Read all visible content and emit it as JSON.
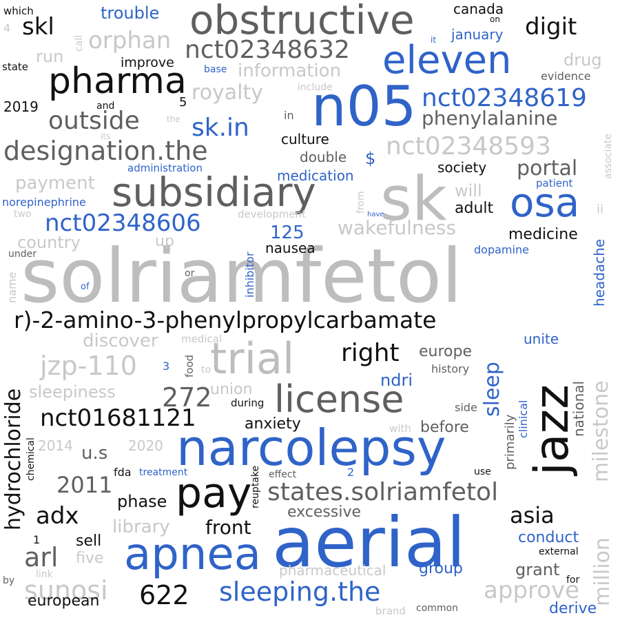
{
  "palette": {
    "black": "#111111",
    "dark_gray": "#5f5f5f",
    "gray": "#a6a6a6",
    "light_gray": "#c8c8c8",
    "blue": "#2f63c8"
  },
  "words": [
    {
      "text": "solriamfetol",
      "color": "#bdbdbd"
    },
    {
      "text": "sk",
      "color": "#bdbdbd"
    },
    {
      "text": "n05",
      "color": "#2f63c8"
    },
    {
      "text": "aerial",
      "color": "#2f63c8"
    },
    {
      "text": "narcolepsy",
      "color": "#2f63c8"
    },
    {
      "text": "obstructive",
      "color": "#5f5f5f"
    },
    {
      "text": "subsidiary",
      "color": "#5f5f5f"
    },
    {
      "text": "jazz",
      "color": "#111111"
    },
    {
      "text": "trial",
      "color": "#bdbdbd"
    },
    {
      "text": "license",
      "color": "#5f5f5f"
    },
    {
      "text": "apnea",
      "color": "#2f63c8"
    },
    {
      "text": "pay",
      "color": "#111111"
    },
    {
      "text": "eleven",
      "color": "#2f63c8"
    },
    {
      "text": "osa",
      "color": "#2f63c8"
    },
    {
      "text": "pharma",
      "color": "#111111"
    },
    {
      "text": "r)-2-amino-3-phenylpropylcarbamate",
      "color": "#111111"
    },
    {
      "text": "nct02348632",
      "color": "#5f5f5f"
    },
    {
      "text": "nct02348619",
      "color": "#2f63c8"
    },
    {
      "text": "nct02348593",
      "color": "#c8c8c8"
    },
    {
      "text": "nct02348606",
      "color": "#2f63c8"
    },
    {
      "text": "nct01681121",
      "color": "#111111"
    },
    {
      "text": "designation.the",
      "color": "#5f5f5f"
    },
    {
      "text": "states.solriamfetol",
      "color": "#5f5f5f"
    },
    {
      "text": "sleeping.the",
      "color": "#2f63c8"
    },
    {
      "text": "hydrochloride",
      "color": "#111111"
    },
    {
      "text": "orphan",
      "color": "#c8c8c8"
    },
    {
      "text": "outside",
      "color": "#5f5f5f"
    },
    {
      "text": "sk.in",
      "color": "#2f63c8"
    },
    {
      "text": "digit",
      "color": "#111111"
    },
    {
      "text": "skl",
      "color": "#111111"
    },
    {
      "text": "royalty",
      "color": "#c8c8c8"
    },
    {
      "text": "phenylalanine",
      "color": "#5f5f5f"
    },
    {
      "text": "portal",
      "color": "#5f5f5f"
    },
    {
      "text": "jzp-110",
      "color": "#c8c8c8"
    },
    {
      "text": "272",
      "color": "#5f5f5f"
    },
    {
      "text": "right",
      "color": "#111111"
    },
    {
      "text": "sleep",
      "color": "#2f63c8"
    },
    {
      "text": "milestone",
      "color": "#c8c8c8"
    },
    {
      "text": "million",
      "color": "#c8c8c8"
    },
    {
      "text": "adx",
      "color": "#111111"
    },
    {
      "text": "arl",
      "color": "#5f5f5f"
    },
    {
      "text": "sunosi",
      "color": "#c8c8c8"
    },
    {
      "text": "622",
      "color": "#111111"
    },
    {
      "text": "approve",
      "color": "#c8c8c8"
    },
    {
      "text": "asia",
      "color": "#111111"
    },
    {
      "text": "wakefulness",
      "color": "#c8c8c8"
    },
    {
      "text": "information",
      "color": "#c8c8c8"
    },
    {
      "text": "payment",
      "color": "#c8c8c8"
    },
    {
      "text": "country",
      "color": "#c8c8c8"
    },
    {
      "text": "discover",
      "color": "#c8c8c8"
    },
    {
      "text": "sleepiness",
      "color": "#c8c8c8"
    },
    {
      "text": "library",
      "color": "#c8c8c8"
    },
    {
      "text": "excessive",
      "color": "#5f5f5f"
    },
    {
      "text": "pharmaceutical",
      "color": "#c8c8c8"
    },
    {
      "text": "u.s",
      "color": "#5f5f5f"
    },
    {
      "text": "2011",
      "color": "#5f5f5f"
    },
    {
      "text": "front",
      "color": "#111111"
    },
    {
      "text": "phase",
      "color": "#111111"
    },
    {
      "text": "ndri",
      "color": "#2f63c8"
    },
    {
      "text": "anxiety",
      "color": "#111111"
    },
    {
      "text": "before",
      "color": "#5f5f5f"
    },
    {
      "text": "europe",
      "color": "#5f5f5f"
    },
    {
      "text": "unite",
      "color": "#2f63c8"
    },
    {
      "text": "conduct",
      "color": "#2f63c8"
    },
    {
      "text": "grant",
      "color": "#5f5f5f"
    },
    {
      "text": "group",
      "color": "#2f63c8"
    },
    {
      "text": "derive",
      "color": "#2f63c8"
    },
    {
      "text": "european",
      "color": "#111111"
    },
    {
      "text": "sell",
      "color": "#111111"
    },
    {
      "text": "five",
      "color": "#c8c8c8"
    },
    {
      "text": "medicine",
      "color": "#111111"
    },
    {
      "text": "adult",
      "color": "#111111"
    },
    {
      "text": "society",
      "color": "#111111"
    },
    {
      "text": "will",
      "color": "#c8c8c8"
    },
    {
      "text": "125",
      "color": "#2f63c8"
    },
    {
      "text": "nausea",
      "color": "#111111"
    },
    {
      "text": "drug",
      "color": "#c8c8c8"
    },
    {
      "text": "trouble",
      "color": "#2f63c8"
    },
    {
      "text": "january",
      "color": "#2f63c8"
    },
    {
      "text": "canada",
      "color": "#111111"
    },
    {
      "text": "evidence",
      "color": "#5f5f5f"
    },
    {
      "text": "culture",
      "color": "#111111"
    },
    {
      "text": "double",
      "color": "#5f5f5f"
    },
    {
      "text": "medication",
      "color": "#2f63c8"
    },
    {
      "text": "improve",
      "color": "#111111"
    },
    {
      "text": "run",
      "color": "#c8c8c8"
    },
    {
      "text": "2019",
      "color": "#111111"
    },
    {
      "text": "up",
      "color": "#c8c8c8"
    },
    {
      "text": "union",
      "color": "#c8c8c8"
    },
    {
      "text": "2014",
      "color": "#c8c8c8"
    },
    {
      "text": "2020",
      "color": "#c8c8c8"
    },
    {
      "text": "fda",
      "color": "#111111"
    },
    {
      "text": "treatment",
      "color": "#2f63c8"
    },
    {
      "text": "history",
      "color": "#5f5f5f"
    },
    {
      "text": "side",
      "color": "#5f5f5f"
    },
    {
      "text": "use",
      "color": "#111111"
    },
    {
      "text": "effect",
      "color": "#5f5f5f"
    },
    {
      "text": "dopamine",
      "color": "#2f63c8"
    },
    {
      "text": "patient",
      "color": "#2f63c8"
    },
    {
      "text": "development",
      "color": "#c8c8c8"
    },
    {
      "text": "norepinephrine",
      "color": "#2f63c8"
    },
    {
      "text": "administration",
      "color": "#2f63c8"
    },
    {
      "text": "which",
      "color": "#111111"
    },
    {
      "text": "state",
      "color": "#111111"
    },
    {
      "text": "and",
      "color": "#111111"
    },
    {
      "text": "the",
      "color": "#c8c8c8"
    },
    {
      "text": "its",
      "color": "#c8c8c8"
    },
    {
      "text": "in",
      "color": "#5f5f5f"
    },
    {
      "text": "include",
      "color": "#c8c8c8"
    },
    {
      "text": "base",
      "color": "#2f63c8"
    },
    {
      "text": "it",
      "color": "#2f63c8"
    },
    {
      "text": "on",
      "color": "#111111"
    },
    {
      "text": "two",
      "color": "#c8c8c8"
    },
    {
      "text": "under",
      "color": "#5f5f5f"
    },
    {
      "text": "or",
      "color": "#5f5f5f"
    },
    {
      "text": "of",
      "color": "#2f63c8"
    },
    {
      "text": "medical",
      "color": "#c8c8c8"
    },
    {
      "text": "during",
      "color": "#111111"
    },
    {
      "text": "with",
      "color": "#c8c8c8"
    },
    {
      "text": "food",
      "color": "#5f5f5f"
    },
    {
      "text": "to",
      "color": "#c8c8c8"
    },
    {
      "text": "3",
      "color": "#2f63c8"
    },
    {
      "text": "1",
      "color": "#111111"
    },
    {
      "text": "2",
      "color": "#2f63c8"
    },
    {
      "text": "4",
      "color": "#c8c8c8"
    },
    {
      "text": "5",
      "color": "#111111"
    },
    {
      "text": "$",
      "color": "#2f63c8"
    },
    {
      "text": "link",
      "color": "#c8c8c8"
    },
    {
      "text": "by",
      "color": "#5f5f5f"
    },
    {
      "text": "brand",
      "color": "#c8c8c8"
    },
    {
      "text": "common",
      "color": "#5f5f5f"
    },
    {
      "text": "for",
      "color": "#111111"
    },
    {
      "text": "external",
      "color": "#111111"
    },
    {
      "text": "call",
      "color": "#c8c8c8"
    },
    {
      "text": "associate",
      "color": "#c8c8c8"
    },
    {
      "text": "ii",
      "color": "#c8c8c8"
    },
    {
      "text": "headache",
      "color": "#2f63c8"
    },
    {
      "text": "inhibitor",
      "color": "#2f63c8"
    },
    {
      "text": "name",
      "color": "#c8c8c8"
    },
    {
      "text": "from",
      "color": "#c8c8c8"
    },
    {
      "text": "have",
      "color": "#2f63c8"
    },
    {
      "text": "national",
      "color": "#5f5f5f"
    },
    {
      "text": "primarily",
      "color": "#5f5f5f"
    },
    {
      "text": "clinical",
      "color": "#2f63c8"
    },
    {
      "text": "reuptake",
      "color": "#111111"
    },
    {
      "text": "chemical",
      "color": "#111111"
    }
  ]
}
